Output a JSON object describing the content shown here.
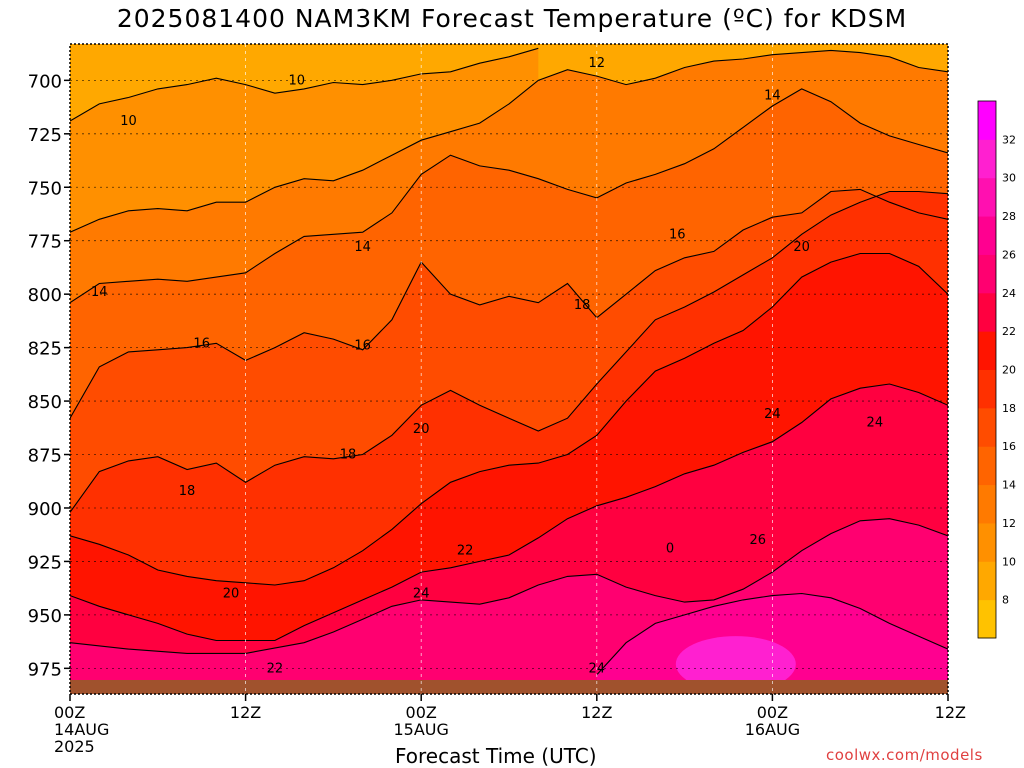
{
  "chart_data": {
    "type": "heatmap",
    "title": "2025081400 NAM3KM Forecast Temperature (ºC) for KDSM",
    "xlabel": "Forecast Time (UTC)",
    "ylabel": "",
    "x_ticks": [
      {
        "hour": 0,
        "lines": [
          "00Z",
          "14AUG",
          "2025"
        ]
      },
      {
        "hour": 12,
        "lines": [
          "12Z"
        ]
      },
      {
        "hour": 24,
        "lines": [
          "00Z",
          "15AUG"
        ]
      },
      {
        "hour": 36,
        "lines": [
          "12Z"
        ]
      },
      {
        "hour": 48,
        "lines": [
          "00Z",
          "16AUG"
        ]
      },
      {
        "hour": 60,
        "lines": [
          "12Z"
        ]
      }
    ],
    "xlim": [
      0,
      60
    ],
    "y_ticks": [
      700,
      725,
      750,
      775,
      800,
      825,
      850,
      875,
      900,
      925,
      950,
      975
    ],
    "ylim": [
      683,
      987
    ],
    "colorbar": {
      "levels": [
        6,
        8,
        10,
        12,
        14,
        16,
        18,
        20,
        22,
        24,
        26,
        28,
        30,
        32,
        34
      ],
      "labels": [
        "8",
        "10",
        "12",
        "14",
        "16",
        "18",
        "20",
        "22",
        "24",
        "26",
        "28",
        "30",
        "32"
      ],
      "colors": [
        "#ffc200",
        "#ffa800",
        "#ff9000",
        "#ff7a00",
        "#ff6400",
        "#ff4c00",
        "#ff3000",
        "#ff1400",
        "#ff0040",
        "#ff0070",
        "#ff0090",
        "#ff10b0",
        "#ff20d0",
        "#ff00ff"
      ]
    },
    "contours": [
      {
        "level": 10,
        "points": [
          [
            0,
            719
          ],
          [
            2,
            711
          ],
          [
            4,
            708
          ],
          [
            6,
            704
          ],
          [
            8,
            702
          ],
          [
            10,
            699
          ],
          [
            12,
            702
          ],
          [
            14,
            706
          ],
          [
            16,
            704
          ],
          [
            18,
            701
          ],
          [
            20,
            702
          ],
          [
            22,
            700
          ],
          [
            24,
            697
          ],
          [
            26,
            696
          ],
          [
            28,
            692
          ],
          [
            30,
            689
          ],
          [
            32,
            685
          ]
        ]
      },
      {
        "level": 12,
        "points": [
          [
            0,
            771
          ],
          [
            2,
            765
          ],
          [
            4,
            761
          ],
          [
            6,
            760
          ],
          [
            8,
            761
          ],
          [
            10,
            757
          ],
          [
            12,
            757
          ],
          [
            14,
            750
          ],
          [
            16,
            746
          ],
          [
            18,
            747
          ],
          [
            20,
            742
          ],
          [
            22,
            735
          ],
          [
            24,
            728
          ],
          [
            26,
            724
          ],
          [
            28,
            720
          ],
          [
            30,
            711
          ],
          [
            32,
            700
          ],
          [
            34,
            695
          ],
          [
            36,
            698
          ],
          [
            38,
            702
          ],
          [
            40,
            699
          ],
          [
            42,
            694
          ],
          [
            44,
            691
          ],
          [
            46,
            690
          ],
          [
            48,
            688
          ],
          [
            50,
            687
          ],
          [
            52,
            686
          ],
          [
            54,
            687
          ],
          [
            56,
            689
          ],
          [
            58,
            694
          ],
          [
            60,
            696
          ]
        ]
      },
      {
        "level": 14,
        "points": [
          [
            0,
            804
          ],
          [
            2,
            795
          ],
          [
            4,
            794
          ],
          [
            6,
            793
          ],
          [
            8,
            794
          ],
          [
            10,
            792
          ],
          [
            12,
            790
          ],
          [
            14,
            781
          ],
          [
            16,
            773
          ],
          [
            18,
            772
          ],
          [
            20,
            771
          ],
          [
            22,
            762
          ],
          [
            24,
            744
          ],
          [
            26,
            735
          ],
          [
            28,
            740
          ],
          [
            30,
            742
          ],
          [
            32,
            746
          ],
          [
            34,
            751
          ],
          [
            36,
            755
          ],
          [
            38,
            748
          ],
          [
            40,
            744
          ],
          [
            42,
            739
          ],
          [
            44,
            732
          ],
          [
            46,
            722
          ],
          [
            48,
            712
          ],
          [
            50,
            704
          ],
          [
            52,
            710
          ],
          [
            54,
            720
          ],
          [
            56,
            726
          ],
          [
            58,
            730
          ],
          [
            60,
            734
          ]
        ]
      },
      {
        "level": 16,
        "points": [
          [
            0,
            858
          ],
          [
            2,
            834
          ],
          [
            4,
            827
          ],
          [
            6,
            826
          ],
          [
            8,
            825
          ],
          [
            10,
            823
          ],
          [
            12,
            831
          ],
          [
            14,
            825
          ],
          [
            16,
            818
          ],
          [
            18,
            821
          ],
          [
            20,
            826
          ],
          [
            22,
            812
          ],
          [
            24,
            785
          ],
          [
            26,
            800
          ],
          [
            28,
            805
          ],
          [
            30,
            801
          ],
          [
            32,
            804
          ],
          [
            34,
            795
          ],
          [
            36,
            811
          ],
          [
            38,
            800
          ],
          [
            40,
            789
          ],
          [
            42,
            783
          ],
          [
            44,
            780
          ],
          [
            46,
            770
          ],
          [
            48,
            764
          ],
          [
            50,
            762
          ],
          [
            52,
            752
          ],
          [
            54,
            751
          ],
          [
            56,
            757
          ],
          [
            58,
            762
          ],
          [
            60,
            765
          ]
        ]
      },
      {
        "level": 18,
        "points": [
          [
            0,
            902
          ],
          [
            2,
            883
          ],
          [
            4,
            878
          ],
          [
            6,
            876
          ],
          [
            8,
            882
          ],
          [
            10,
            879
          ],
          [
            12,
            888
          ],
          [
            14,
            880
          ],
          [
            16,
            876
          ],
          [
            18,
            877
          ],
          [
            20,
            875
          ],
          [
            22,
            866
          ],
          [
            24,
            852
          ],
          [
            26,
            845
          ],
          [
            28,
            852
          ],
          [
            30,
            858
          ],
          [
            32,
            864
          ],
          [
            34,
            858
          ],
          [
            36,
            842
          ],
          [
            38,
            827
          ],
          [
            40,
            812
          ],
          [
            42,
            806
          ],
          [
            44,
            799
          ],
          [
            46,
            791
          ],
          [
            48,
            783
          ],
          [
            50,
            772
          ],
          [
            52,
            763
          ],
          [
            54,
            757
          ],
          [
            56,
            752
          ],
          [
            58,
            752
          ],
          [
            60,
            753
          ]
        ]
      },
      {
        "level": 20,
        "points": [
          [
            0,
            913
          ],
          [
            2,
            917
          ],
          [
            4,
            922
          ],
          [
            6,
            929
          ],
          [
            8,
            932
          ],
          [
            10,
            934
          ],
          [
            12,
            935
          ],
          [
            14,
            936
          ],
          [
            16,
            934
          ],
          [
            18,
            928
          ],
          [
            20,
            920
          ],
          [
            22,
            910
          ],
          [
            24,
            898
          ],
          [
            26,
            888
          ],
          [
            28,
            883
          ],
          [
            30,
            880
          ],
          [
            32,
            879
          ],
          [
            34,
            875
          ],
          [
            36,
            866
          ],
          [
            38,
            850
          ],
          [
            40,
            836
          ],
          [
            42,
            830
          ],
          [
            44,
            823
          ],
          [
            46,
            817
          ],
          [
            48,
            806
          ],
          [
            50,
            792
          ],
          [
            52,
            785
          ],
          [
            54,
            781
          ],
          [
            56,
            781
          ],
          [
            58,
            787
          ],
          [
            60,
            800
          ]
        ]
      },
      {
        "level": 22,
        "points": [
          [
            0,
            941
          ],
          [
            2,
            946
          ],
          [
            4,
            950
          ],
          [
            6,
            954
          ],
          [
            8,
            959
          ],
          [
            10,
            962
          ],
          [
            12,
            962
          ],
          [
            14,
            962
          ],
          [
            16,
            955
          ],
          [
            18,
            949
          ],
          [
            20,
            943
          ],
          [
            22,
            937
          ],
          [
            24,
            930
          ],
          [
            26,
            928
          ],
          [
            28,
            925
          ],
          [
            30,
            922
          ],
          [
            32,
            914
          ],
          [
            34,
            905
          ],
          [
            36,
            899
          ],
          [
            38,
            895
          ],
          [
            40,
            890
          ],
          [
            42,
            884
          ],
          [
            44,
            880
          ],
          [
            46,
            874
          ],
          [
            48,
            869
          ],
          [
            50,
            860
          ],
          [
            52,
            849
          ],
          [
            54,
            844
          ],
          [
            56,
            842
          ],
          [
            58,
            846
          ],
          [
            60,
            852
          ]
        ]
      },
      {
        "level": 24,
        "points": [
          [
            0,
            963
          ],
          [
            4,
            966
          ],
          [
            8,
            968
          ],
          [
            12,
            968
          ],
          [
            16,
            963
          ],
          [
            18,
            958
          ],
          [
            20,
            952
          ],
          [
            22,
            946
          ],
          [
            24,
            943
          ],
          [
            26,
            944
          ],
          [
            28,
            945
          ],
          [
            30,
            942
          ],
          [
            32,
            936
          ],
          [
            34,
            932
          ],
          [
            36,
            931
          ],
          [
            38,
            937
          ],
          [
            40,
            941
          ],
          [
            42,
            944
          ],
          [
            44,
            943
          ],
          [
            46,
            938
          ],
          [
            48,
            930
          ],
          [
            50,
            920
          ],
          [
            52,
            912
          ],
          [
            54,
            906
          ],
          [
            56,
            905
          ],
          [
            58,
            908
          ],
          [
            60,
            913
          ]
        ]
      },
      {
        "level": 26,
        "points": [
          [
            36,
            978
          ],
          [
            38,
            963
          ],
          [
            40,
            954
          ],
          [
            42,
            950
          ],
          [
            44,
            946
          ],
          [
            46,
            943
          ],
          [
            48,
            941
          ],
          [
            50,
            940
          ],
          [
            52,
            942
          ],
          [
            54,
            947
          ],
          [
            56,
            954
          ],
          [
            58,
            960
          ],
          [
            60,
            966
          ]
        ]
      }
    ],
    "contour_labels": [
      {
        "text": "10",
        "hour": 15.5,
        "p": 700
      },
      {
        "text": "10",
        "hour": 4,
        "p": 719
      },
      {
        "text": "12",
        "hour": 36,
        "p": 692
      },
      {
        "text": "14",
        "hour": 48,
        "p": 707
      },
      {
        "text": "14",
        "hour": 2,
        "p": 799
      },
      {
        "text": "14",
        "hour": 20,
        "p": 778
      },
      {
        "text": "16",
        "hour": 41.5,
        "p": 772
      },
      {
        "text": "16",
        "hour": 9,
        "p": 823
      },
      {
        "text": "16",
        "hour": 20,
        "p": 824
      },
      {
        "text": "18",
        "hour": 35,
        "p": 805
      },
      {
        "text": "18",
        "hour": 8,
        "p": 892
      },
      {
        "text": "18",
        "hour": 19,
        "p": 875
      },
      {
        "text": "20",
        "hour": 50,
        "p": 778
      },
      {
        "text": "20",
        "hour": 24,
        "p": 863
      },
      {
        "text": "20",
        "hour": 11,
        "p": 940
      },
      {
        "text": "22",
        "hour": 27,
        "p": 920
      },
      {
        "text": "22",
        "hour": 14,
        "p": 975
      },
      {
        "text": "24",
        "hour": 24,
        "p": 940
      },
      {
        "text": "24",
        "hour": 36,
        "p": 975
      },
      {
        "text": "24",
        "hour": 48,
        "p": 856
      },
      {
        "text": "24",
        "hour": 55,
        "p": 860
      },
      {
        "text": "26",
        "hour": 47,
        "p": 915
      },
      {
        "text": "0",
        "hour": 41,
        "p": 919
      }
    ]
  },
  "watermark": "coolwx.com/models"
}
